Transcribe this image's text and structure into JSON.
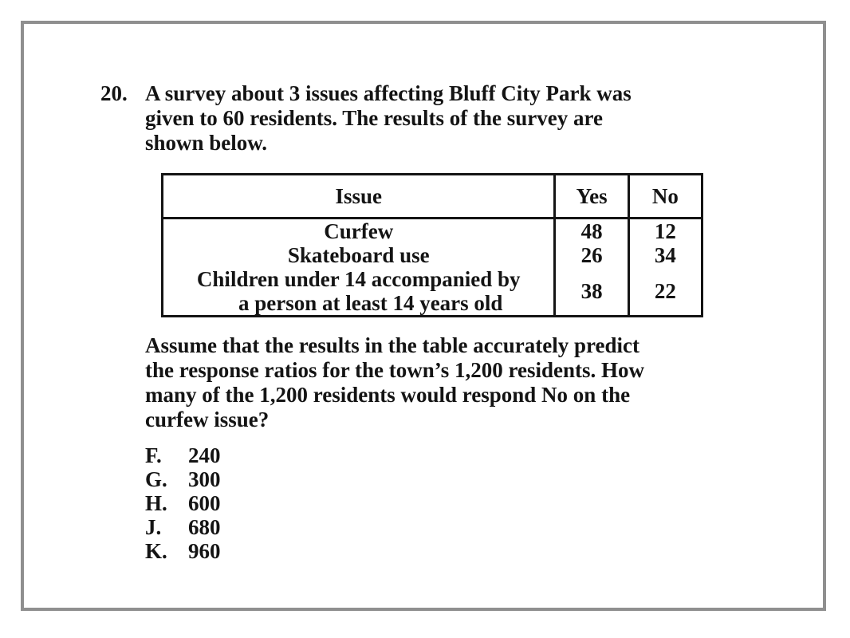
{
  "question": {
    "number": "20.",
    "stem_lines": [
      "A survey about 3 issues affecting Bluff City Park was",
      "given to 60 residents. The results of the survey are",
      "shown below."
    ],
    "table": {
      "headers": {
        "issue": "Issue",
        "yes": "Yes",
        "no": "No"
      },
      "rows": [
        {
          "issue": "Curfew",
          "yes": "48",
          "no": "12"
        },
        {
          "issue": "Skateboard use",
          "yes": "26",
          "no": "34"
        },
        {
          "issue_line1": "Children under 14 accompanied by",
          "issue_line2": "a person at least 14 years old",
          "yes": "38",
          "no": "22"
        }
      ]
    },
    "followup_lines": [
      "Assume that the results in the table accurately predict",
      "the response ratios for the town’s 1,200 residents. How",
      "many of the 1,200 residents would respond No on the",
      "curfew issue?"
    ],
    "choices": [
      {
        "letter": "F.",
        "value": "240"
      },
      {
        "letter": "G.",
        "value": "300"
      },
      {
        "letter": "H.",
        "value": "600"
      },
      {
        "letter": "J.",
        "value": "680"
      },
      {
        "letter": "K.",
        "value": "960"
      }
    ]
  }
}
